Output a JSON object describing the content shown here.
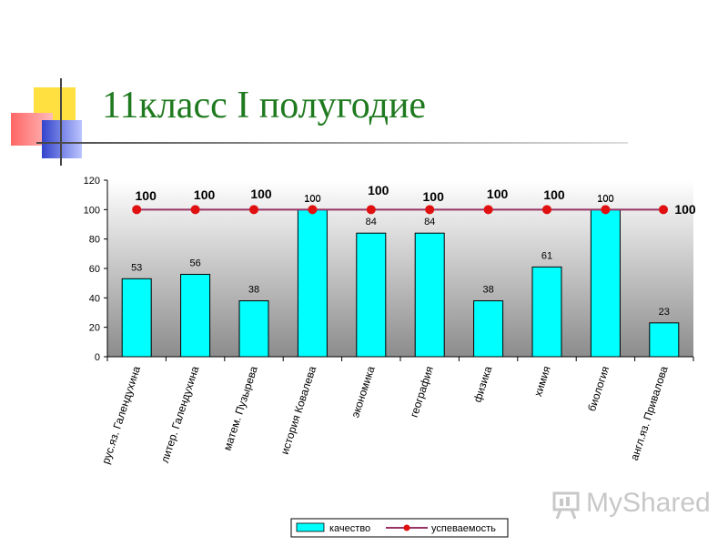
{
  "slide": {
    "title": "11класс I полугодие",
    "watermark": "MyShared"
  },
  "colors": {
    "title": "#1f7a1f",
    "bar": "#00ffff",
    "line": "#993366",
    "marker": "#e01010",
    "plot_bg_light": "#ffffff",
    "plot_bg_dark": "#8c8c8c"
  },
  "chart_data": {
    "type": "bar",
    "title": "",
    "xlabel": "",
    "ylabel": "",
    "ylim": [
      0,
      120
    ],
    "yticks": [
      0,
      20,
      40,
      60,
      80,
      100,
      120
    ],
    "grid": false,
    "legend_position": "bottom",
    "categories": [
      "рус.яз. Галендухина",
      "литер. Галендухина",
      "матем. Пузырева",
      "история Ковалева",
      "экономика",
      "география",
      "физика",
      "химия",
      "биология",
      "англ.яз. Привалова"
    ],
    "series": [
      {
        "name": "качество",
        "kind": "bar",
        "values": [
          53,
          56,
          38,
          100,
          84,
          84,
          38,
          61,
          100,
          23
        ],
        "labels": [
          "53",
          "56",
          "38",
          "100",
          "84",
          "84",
          "38",
          "61",
          "100",
          "23"
        ]
      },
      {
        "name": "успеваемость",
        "kind": "line",
        "values": [
          100,
          100,
          100,
          100,
          100,
          100,
          100,
          100,
          100,
          100
        ],
        "labels": [
          "100",
          "100",
          "100",
          "100",
          "100",
          "100",
          "100",
          "100",
          "100",
          "100"
        ]
      }
    ]
  }
}
